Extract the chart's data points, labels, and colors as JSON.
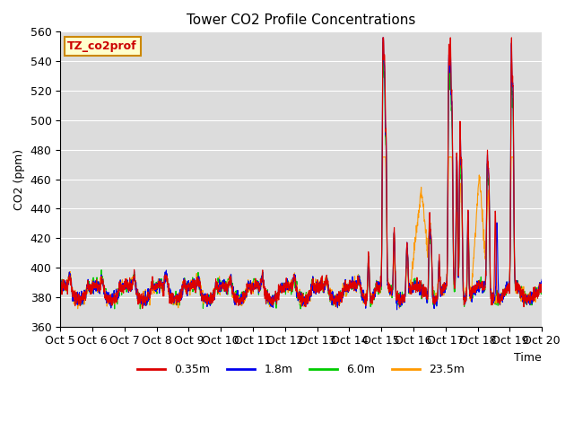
{
  "title": "Tower CO2 Profile Concentrations",
  "ylabel": "CO2 (ppm)",
  "xlabel": "Time",
  "ylim": [
    360,
    560
  ],
  "annotation_text": "TZ_co2prof",
  "series_labels": [
    "0.35m",
    "1.8m",
    "6.0m",
    "23.5m"
  ],
  "series_colors": [
    "#dd0000",
    "#0000ee",
    "#00cc00",
    "#ff9900"
  ],
  "bg_color": "#dcdcdc",
  "tick_labels": [
    "Oct 5",
    "Oct 6",
    "Oct 7",
    "Oct 8",
    "Oct 9",
    "Oct 10",
    "Oct 11",
    "Oct 12",
    "Oct 13",
    "Oct 14",
    "Oct 15",
    "Oct 16",
    "Oct 17",
    "Oct 18",
    "Oct 19",
    "Oct 20"
  ],
  "linewidth": 0.8
}
